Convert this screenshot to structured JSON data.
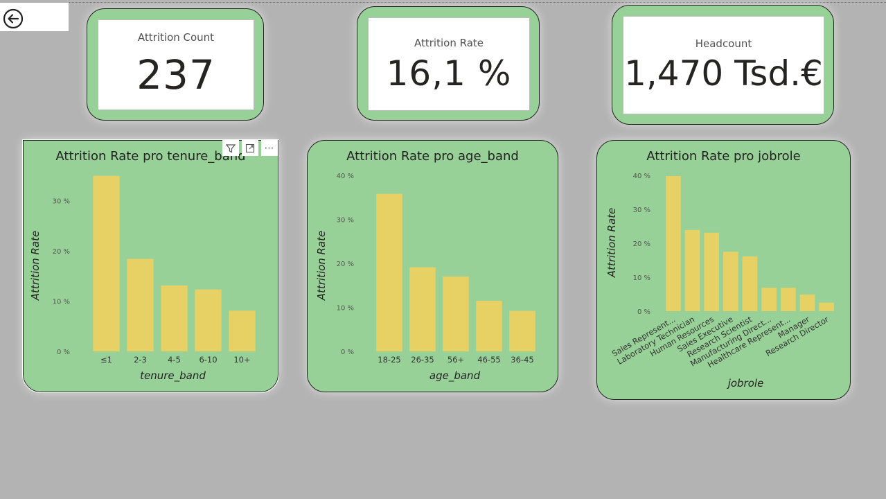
{
  "nav": {
    "back_icon": "back-arrow-circle-icon"
  },
  "kpis": {
    "attrition_count": {
      "label": "Attrition Count",
      "value": "237"
    },
    "attrition_rate": {
      "label": "Attrition Rate",
      "value": "16,1 %"
    },
    "headcount": {
      "label": "Headcount",
      "value": "1,470 Tsd.€"
    }
  },
  "colors": {
    "background": "#b3b3b3",
    "card": "#98d197",
    "bar": "#e8d164"
  },
  "visual_header": {
    "icons": [
      "filter-icon",
      "focus-mode-icon",
      "more-options-icon"
    ]
  },
  "chart_data": [
    {
      "type": "bar",
      "title": "Attrition Rate pro tenure_band",
      "xlabel": "tenure_band",
      "ylabel": "Attrition Rate",
      "categories": [
        "≤1",
        "2-3",
        "4-5",
        "6-10",
        "10+"
      ],
      "values": [
        34.9,
        18.4,
        13.1,
        12.3,
        8.1
      ],
      "ylim": [
        0,
        35
      ],
      "yticks": [
        "0 %",
        "10 %",
        "20 %",
        "30 %"
      ],
      "grid": false
    },
    {
      "type": "bar",
      "title": "Attrition Rate pro age_band",
      "xlabel": "age_band",
      "ylabel": "Attrition Rate",
      "categories": [
        "18-25",
        "26-35",
        "56+",
        "46-55",
        "36-45"
      ],
      "values": [
        35.8,
        19.1,
        17.0,
        11.5,
        9.2
      ],
      "ylim": [
        0,
        40
      ],
      "yticks": [
        "0 %",
        "10 %",
        "20 %",
        "30 %",
        "40 %"
      ],
      "grid": false
    },
    {
      "type": "bar",
      "title": "Attrition Rate pro jobrole",
      "xlabel": "jobrole",
      "ylabel": "Attrition Rate",
      "categories": [
        "Sales Represent...",
        "Laboratory Technician",
        "Human Resources",
        "Sales Executive",
        "Research Scientist",
        "Manufacturing Direct...",
        "Healthcare Represent...",
        "Manager",
        "Research Director"
      ],
      "values": [
        39.8,
        23.9,
        23.1,
        17.5,
        16.1,
        6.9,
        6.9,
        4.9,
        2.5
      ],
      "ylim": [
        0,
        40
      ],
      "yticks": [
        "0 %",
        "10 %",
        "20 %",
        "30 %",
        "40 %"
      ],
      "grid": false
    }
  ]
}
